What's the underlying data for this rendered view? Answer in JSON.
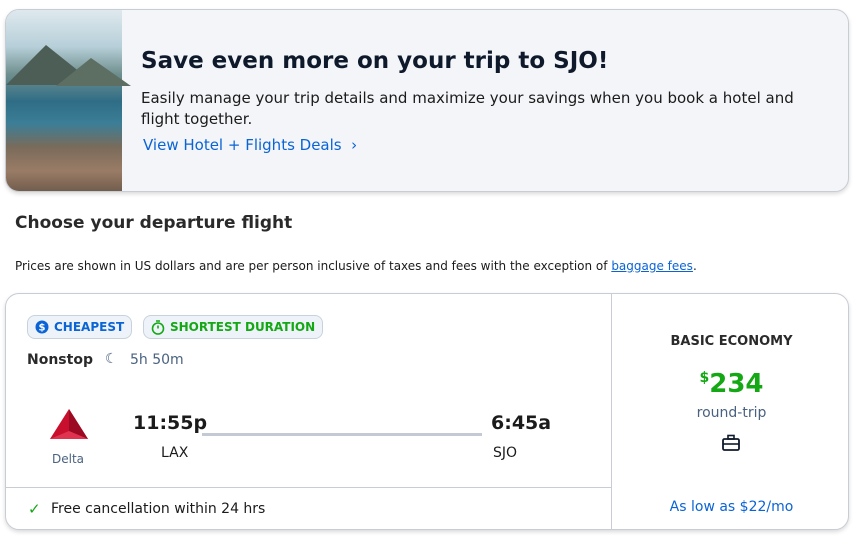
{
  "banner": {
    "title": "Save even more on your trip to SJO!",
    "text": "Easily manage your trip details and maximize your savings when you book a hotel and flight together.",
    "link": "View Hotel + Flights Deals",
    "link_icon": "chevron-right-icon"
  },
  "section_title": "Choose your departure flight",
  "note": {
    "text": "Prices are shown in US dollars and are per person inclusive of taxes and fees with the exception of ",
    "link": "baggage fees",
    "end": "."
  },
  "flight": {
    "badges": [
      {
        "label": "CHEAPEST",
        "icon": "dollar-badge-icon",
        "color": "#0a64d6"
      },
      {
        "label": "SHORTEST DURATION",
        "icon": "stopwatch-icon",
        "color": "#14a814"
      }
    ],
    "stops": "Nonstop",
    "duration_icon": "moon-icon",
    "duration": "5h 50m",
    "airline": "Delta",
    "depart_time": "11:55p",
    "arrive_time": "6:45a",
    "from": "LAX",
    "to": "SJO",
    "cancellation": "Free cancellation within 24 hrs",
    "fare_class": "BASIC ECONOMY",
    "currency": "$",
    "price": "234",
    "trip_type": "round-trip",
    "bag_icon": "carry-on-bag-icon",
    "monthly": "As low as $22/mo"
  }
}
